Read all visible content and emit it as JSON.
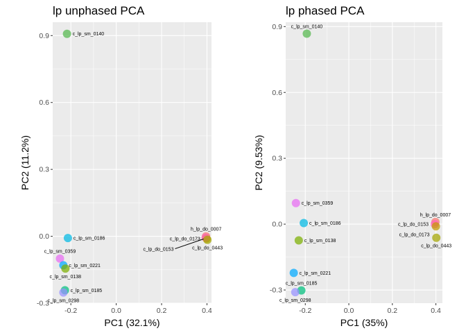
{
  "chart_data": [
    {
      "type": "scatter",
      "title": "lp unphased PCA",
      "xlabel": "PC1 (32.1%)",
      "ylabel": "PC2 (11.2%)",
      "xlim": [
        -0.28,
        0.42
      ],
      "ylim": [
        -0.3,
        0.96
      ],
      "xticks": [
        -0.2,
        0.0,
        0.2,
        0.4
      ],
      "xtick_labels": [
        "-0.2",
        "0.0",
        "0.2",
        "0.4"
      ],
      "yticks": [
        -0.3,
        0.0,
        0.3,
        0.6,
        0.9
      ],
      "ytick_labels": [
        "-0.3",
        "0.0",
        "0.3",
        "0.6",
        "0.9"
      ],
      "grid": true,
      "legend": "none",
      "points": [
        {
          "name": "c_lp_sm_0140",
          "x": -0.217,
          "y": 0.908,
          "color": "#53b74c",
          "label_pos": "right"
        },
        {
          "name": "c_lp_sm_0186",
          "x": -0.213,
          "y": -0.008,
          "color": "#00b9e3",
          "label_pos": "right"
        },
        {
          "name": "c_lp_sm_0359",
          "x": -0.248,
          "y": -0.1,
          "color": "#e76bf3",
          "label_pos": "above"
        },
        {
          "name": "c_lp_sm_0221",
          "x": -0.233,
          "y": -0.13,
          "color": "#00a9ff",
          "label_pos": "right"
        },
        {
          "name": "c_lp_sm_0138",
          "x": -0.224,
          "y": -0.145,
          "color": "#7cae00",
          "label_pos": "below"
        },
        {
          "name": "c_lp_sm_0185",
          "x": -0.226,
          "y": -0.242,
          "color": "#00bf7d",
          "label_pos": "right"
        },
        {
          "name": "c_lp_sm_0298",
          "x": -0.233,
          "y": -0.252,
          "color": "#9590ff",
          "label_pos": "below"
        },
        {
          "name": "h_lp_do_0007",
          "x": 0.396,
          "y": 0.0,
          "color": "#f8766d",
          "label_pos": "above"
        },
        {
          "name": "c_lp_do_0173",
          "x": 0.398,
          "y": -0.01,
          "color": "#c49a00",
          "label_pos": "left"
        },
        {
          "name": "c_lp_do_0153",
          "x": 0.394,
          "y": -0.006,
          "color": "#ff62bc",
          "label_pos": "leftline"
        },
        {
          "name": "c_lp_do_0443",
          "x": 0.402,
          "y": -0.016,
          "color": "#a3a500",
          "label_pos": "below"
        }
      ]
    },
    {
      "type": "scatter",
      "title": "lp phased PCA",
      "xlabel": "PC1 (35%)",
      "ylabel": "PC2 (9.53%)",
      "xlim": [
        -0.29,
        0.43
      ],
      "ylim": [
        -0.36,
        0.92
      ],
      "xticks": [
        -0.2,
        0.0,
        0.2,
        0.4
      ],
      "xtick_labels": [
        "-0.2",
        "0.0",
        "0.2",
        "0.4"
      ],
      "yticks": [
        -0.3,
        0.0,
        0.3,
        0.6,
        0.9
      ],
      "ytick_labels": [
        "-0.3",
        "0.0",
        "0.3",
        "0.6",
        "0.9"
      ],
      "grid": true,
      "legend": "none",
      "points": [
        {
          "name": "c_lp_sm_0140",
          "x": -0.193,
          "y": 0.868,
          "color": "#53b74c",
          "label_pos": "above"
        },
        {
          "name": "c_lp_sm_0359",
          "x": -0.243,
          "y": 0.096,
          "color": "#e76bf3",
          "label_pos": "right"
        },
        {
          "name": "c_lp_sm_0186",
          "x": -0.207,
          "y": 0.005,
          "color": "#00b9e3",
          "label_pos": "right"
        },
        {
          "name": "c_lp_sm_0138",
          "x": -0.23,
          "y": -0.074,
          "color": "#7cae00",
          "label_pos": "right"
        },
        {
          "name": "c_lp_sm_0221",
          "x": -0.253,
          "y": -0.222,
          "color": "#00a9ff",
          "label_pos": "right"
        },
        {
          "name": "c_lp_sm_0185",
          "x": -0.218,
          "y": -0.302,
          "color": "#00bf7d",
          "label_pos": "above"
        },
        {
          "name": "c_lp_sm_0298",
          "x": -0.246,
          "y": -0.31,
          "color": "#9590ff",
          "label_pos": "below"
        },
        {
          "name": "h_lp_do_0007",
          "x": 0.398,
          "y": 0.01,
          "color": "#f8766d",
          "label_pos": "above"
        },
        {
          "name": "c_lp_do_0153",
          "x": 0.395,
          "y": 0.0,
          "color": "#ff62bc",
          "label_pos": "left"
        },
        {
          "name": "c_lp_do_0173",
          "x": 0.4,
          "y": -0.01,
          "color": "#c49a00",
          "label_pos": "leftbelow"
        },
        {
          "name": "c_lp_do_0443",
          "x": 0.402,
          "y": -0.062,
          "color": "#a3a500",
          "label_pos": "below"
        }
      ]
    }
  ]
}
